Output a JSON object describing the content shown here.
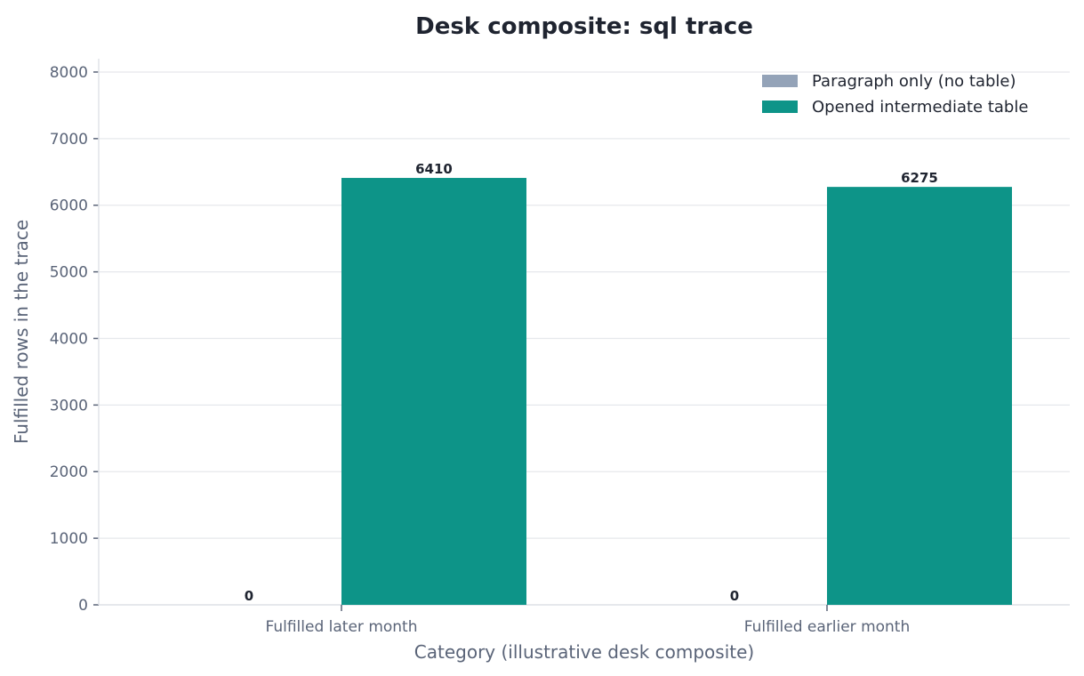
{
  "chart_data": {
    "type": "bar",
    "title": "Desk composite: sql trace",
    "xlabel": "Category (illustrative desk composite)",
    "ylabel": "Fulfilled rows in the trace",
    "categories": [
      "Fulfilled later month",
      "Fulfilled earlier month"
    ],
    "series": [
      {
        "name": "Paragraph only (no table)",
        "values": [
          0,
          0
        ],
        "color": "#94a3b8"
      },
      {
        "name": "Opened intermediate table",
        "values": [
          6410,
          6275
        ],
        "color": "#0d9488"
      }
    ],
    "ylim": [
      0,
      8200
    ],
    "yticks": [
      0,
      1000,
      2000,
      3000,
      4000,
      5000,
      6000,
      7000,
      8000
    ],
    "grid": "horizontal",
    "legend_position": "top-right"
  }
}
